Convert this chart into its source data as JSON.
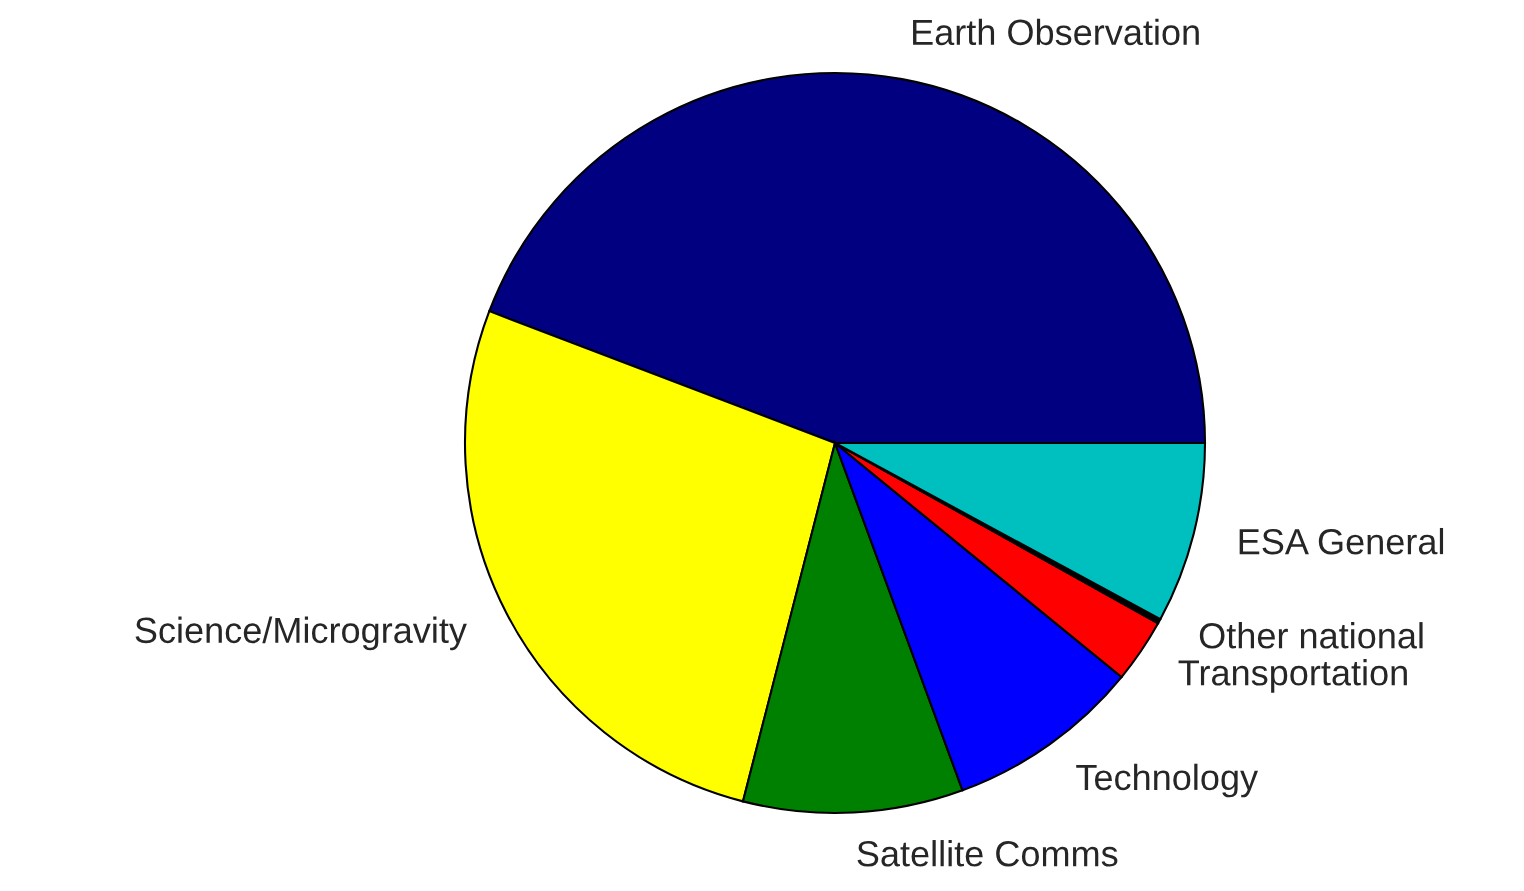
{
  "chart_data": {
    "type": "pie",
    "categories": [
      "Earth Observation",
      "Science/Microgravity",
      "Satellite Comms",
      "Technology",
      "Transportation",
      "Other national",
      "ESA General"
    ],
    "values": [
      44.2,
      26.8,
      9.6,
      8.5,
      2.8,
      0.2,
      7.9
    ],
    "colors": [
      "#000080",
      "#ffff00",
      "#008000",
      "#0000ff",
      "#ff0000",
      "#000000",
      "#00bfbf"
    ]
  }
}
